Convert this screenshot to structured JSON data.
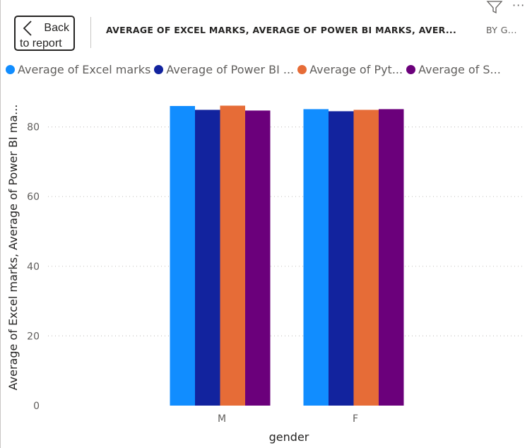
{
  "header": {
    "back_line1": "Back",
    "back_line2": "to report",
    "title": "AVERAGE OF EXCEL MARKS, AVERAGE OF POWER BI MARKS, AVER...",
    "by_text": "BY G...",
    "filter_icon": "filter-icon",
    "more_icon": "more-options-icon",
    "more_glyph": "···"
  },
  "legend": [
    {
      "label": "Average of Excel marks",
      "color": "#118DFF"
    },
    {
      "label": "Average of Power BI ...",
      "color": "#12239E"
    },
    {
      "label": "Average of Pyt...",
      "color": "#E66C37"
    },
    {
      "label": "Average of S...",
      "color": "#6B007B"
    }
  ],
  "chart_data": {
    "type": "bar",
    "categories": [
      "M",
      "F"
    ],
    "series": [
      {
        "name": "Average of Excel marks",
        "color": "#118DFF",
        "values": [
          86.0,
          85.1
        ]
      },
      {
        "name": "Average of Power BI ...",
        "color": "#12239E",
        "values": [
          84.9,
          84.5
        ]
      },
      {
        "name": "Average of Pyt...",
        "color": "#E66C37",
        "values": [
          86.1,
          84.9
        ]
      },
      {
        "name": "Average of S...",
        "color": "#6B007B",
        "values": [
          84.7,
          85.1
        ]
      }
    ],
    "xlabel": "gender",
    "ylabel": "Average of Excel marks, Average of Power BI ma...",
    "yticks": [
      0,
      20,
      40,
      60,
      80
    ],
    "ylim": [
      0,
      88
    ],
    "grid": true,
    "legend_position": "top-left"
  }
}
